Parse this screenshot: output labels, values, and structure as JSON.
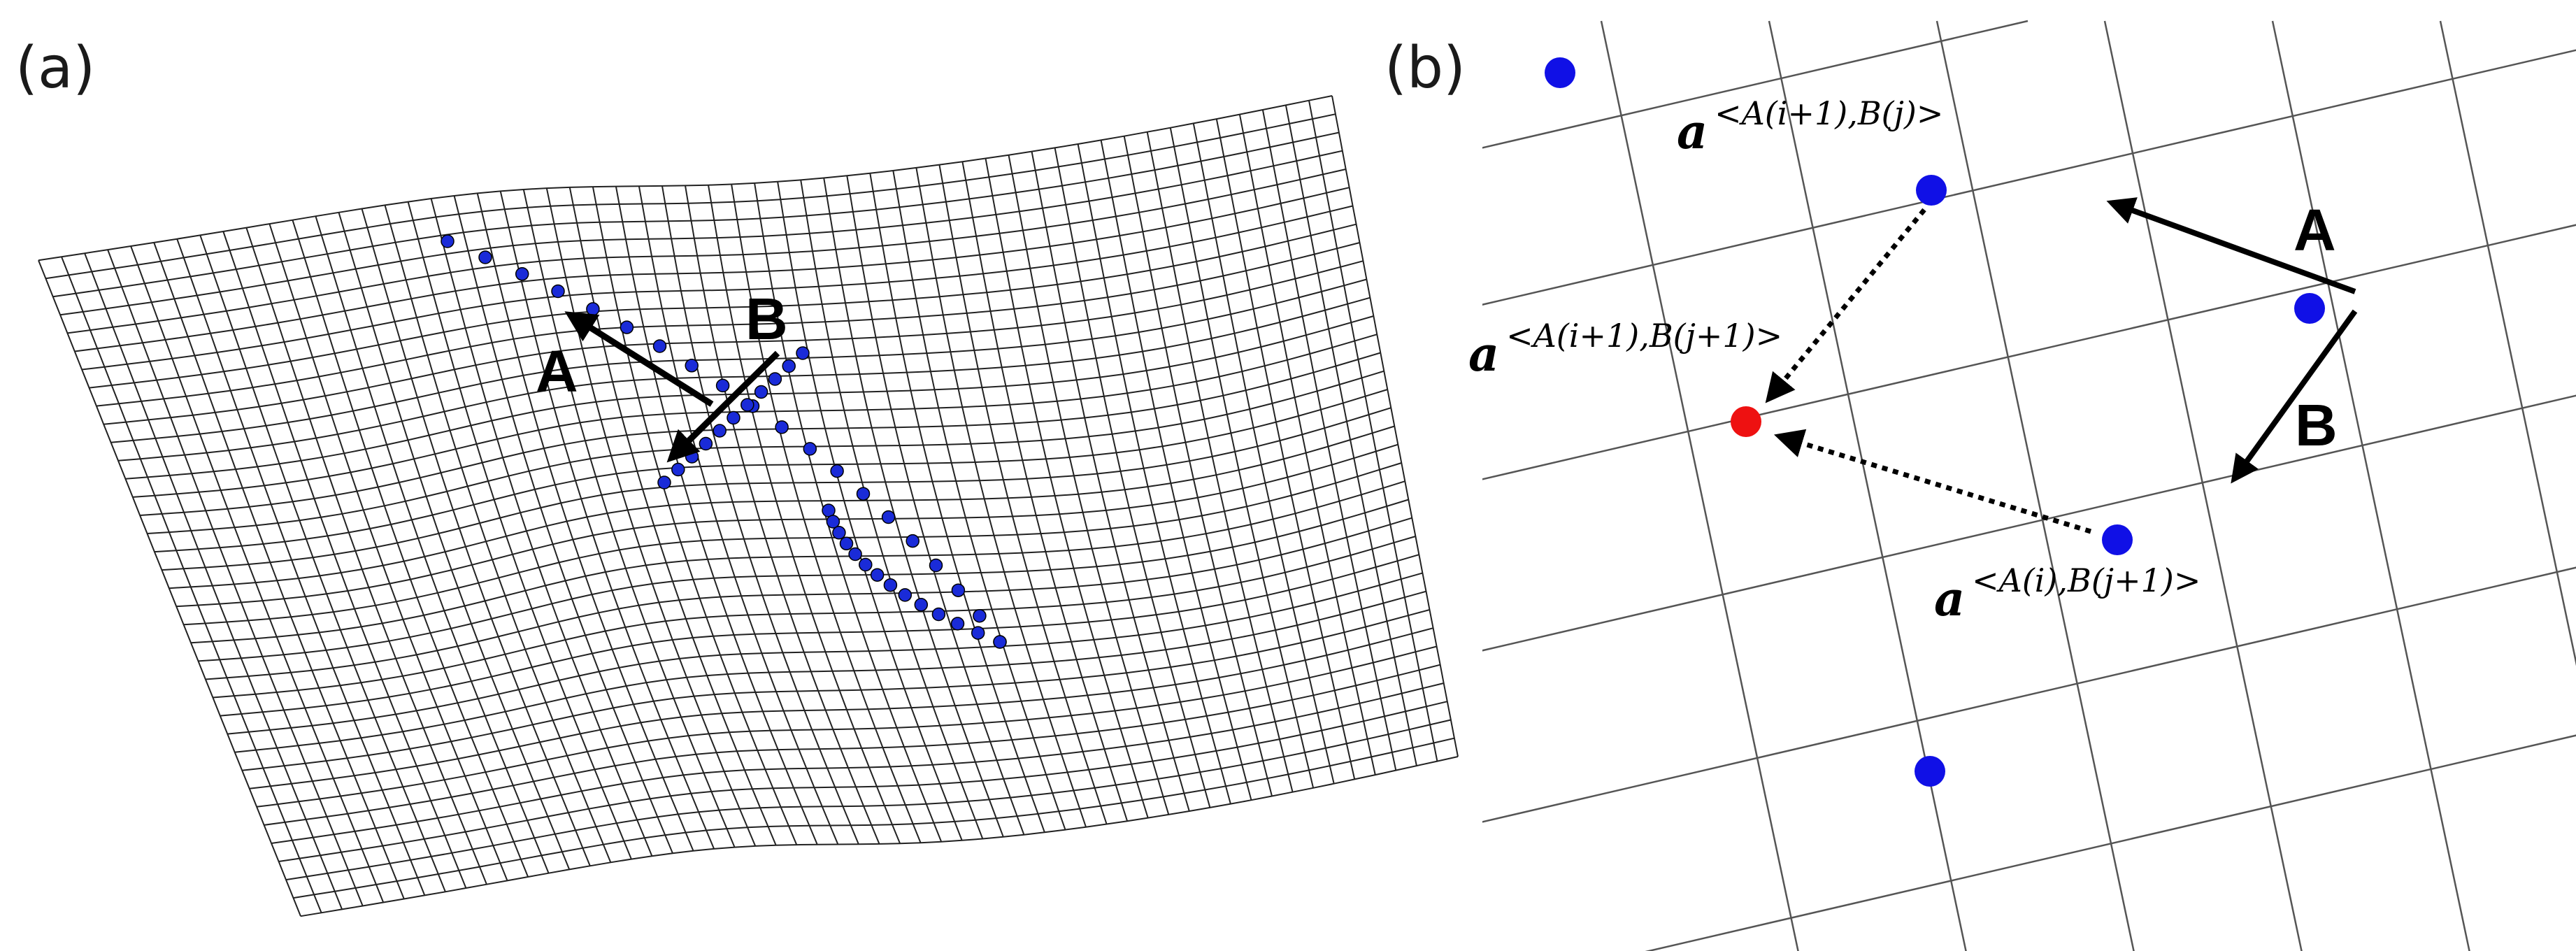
{
  "panel_a": {
    "label": "(a)",
    "axis_a": "A",
    "axis_b": "B"
  },
  "panel_b": {
    "label": "(b)",
    "axis_a": "A",
    "axis_b": "B",
    "vectors": [
      {
        "base": "a",
        "superscript": "<A(i+1),B(j)>"
      },
      {
        "base": "a",
        "superscript": "<A(i+1),B(j+1)>"
      },
      {
        "base": "a",
        "superscript": "<A(i),B(j+1)>"
      }
    ]
  },
  "colors": {
    "mesh": "#222222",
    "node": "#1010e6",
    "target_node": "#ee1111",
    "arrow": "#000000"
  }
}
